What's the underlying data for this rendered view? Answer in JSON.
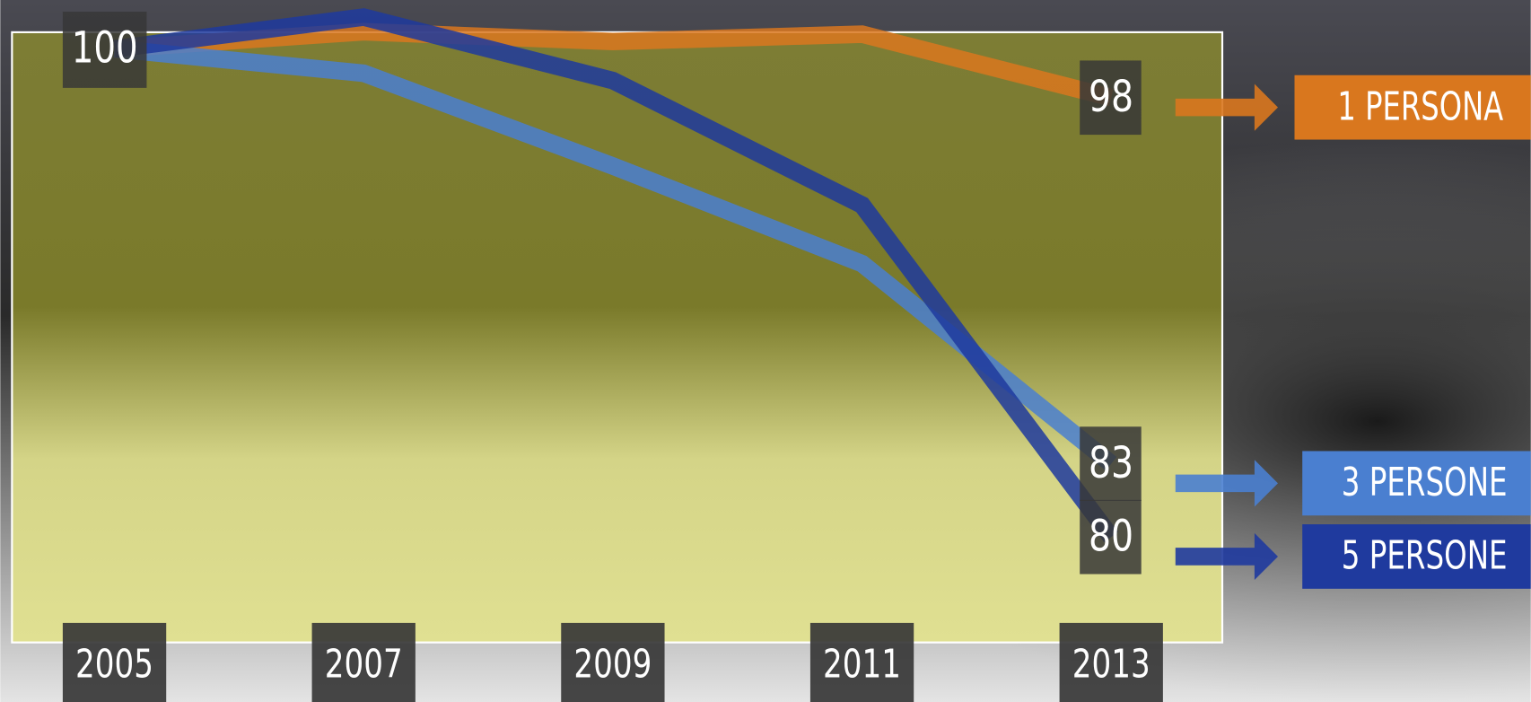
{
  "chart_data": {
    "type": "line",
    "categories": [
      "2005",
      "2007",
      "2009",
      "2011",
      "2013"
    ],
    "series": [
      {
        "name": "1 PERSONA",
        "color": "#d9771e",
        "values": [
          100,
          100.7,
          100.3,
          100.6,
          98
        ]
      },
      {
        "name": "3 PERSONE",
        "color": "#4a7fd0",
        "values": [
          100,
          99.0,
          95.2,
          91.2,
          83
        ]
      },
      {
        "name": "5 PERSONE",
        "color": "#1f3a9e",
        "values": [
          100,
          101.3,
          98.7,
          93.6,
          80
        ]
      }
    ],
    "ylim": [
      75,
      103
    ]
  }
}
